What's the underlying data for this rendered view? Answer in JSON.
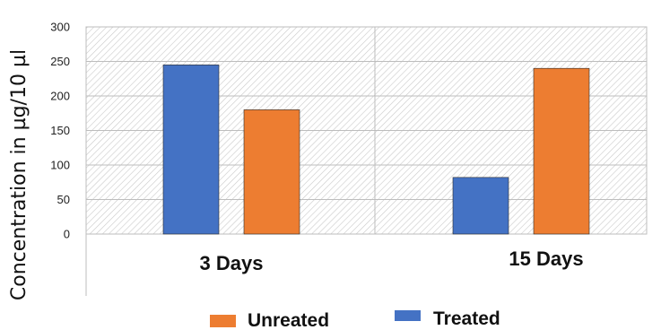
{
  "chart_data": {
    "type": "bar",
    "categories": [
      "3 Days",
      "15 Days"
    ],
    "series": [
      {
        "name": "Treated",
        "values": [
          245,
          82
        ],
        "color": "#4472C4"
      },
      {
        "name": "Unreated",
        "values": [
          180,
          240
        ],
        "color": "#ED7D31"
      }
    ],
    "ylabel": "Concentration in µg/10 µl",
    "ylim": [
      0,
      300
    ],
    "yticks": [
      0,
      50,
      100,
      150,
      200,
      250,
      300
    ],
    "grid": true,
    "plot_background": "hatched",
    "legend": {
      "position": "bottom",
      "entries": [
        {
          "label": "Unreated",
          "color": "#ED7D31"
        },
        {
          "label": "Treated",
          "color": "#4472C4"
        }
      ]
    }
  }
}
